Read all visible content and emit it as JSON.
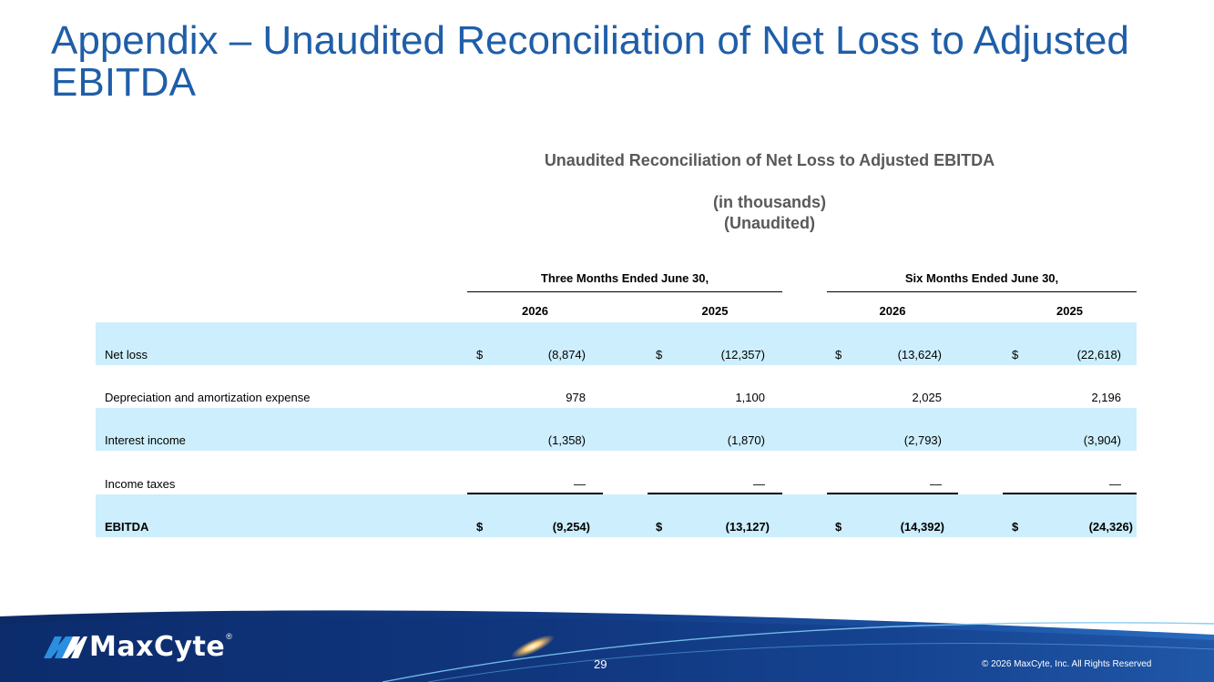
{
  "slide": {
    "title": "Appendix – Unaudited Reconciliation of Net Loss to Adjusted EBITDA",
    "page_number": "29",
    "copyright": "© 2026 MaxCyte, Inc. All Rights Reserved",
    "brand": {
      "name": "MaxCyte",
      "reg_mark": "®",
      "icon": "maxcyte-logo-icon"
    }
  },
  "table": {
    "heading": "Unaudited Reconciliation of Net Loss to Adjusted EBITDA",
    "subheading_1": "(in thousands)",
    "subheading_2": "(Unaudited)",
    "group_headers": [
      "Three Months Ended June 30,",
      "Six Months Ended June 30,"
    ],
    "years": [
      "2026",
      "2025",
      "2026",
      "2025"
    ],
    "rows": [
      {
        "label": "Net loss",
        "dollar": [
          "$",
          "$",
          "$",
          "$"
        ],
        "values": [
          "(8,874)",
          "(12,357)",
          "(13,624)",
          "(22,618)"
        ]
      },
      {
        "label": "Depreciation and amortization expense",
        "values": [
          "978",
          "1,100",
          "2,025",
          "2,196"
        ]
      },
      {
        "label": "Interest income",
        "values": [
          "(1,358)",
          "(1,870)",
          "(2,793)",
          "(3,904)"
        ]
      },
      {
        "label": "Income taxes",
        "values": [
          "—",
          "—",
          "—",
          "—"
        ]
      },
      {
        "label": "EBITDA",
        "dollar": [
          "$",
          "$",
          "$",
          "$"
        ],
        "values": [
          "(9,254)",
          "(13,127)",
          "(14,392)",
          "(24,326)"
        ]
      }
    ]
  },
  "colors": {
    "title": "#1f5ea8",
    "heading_gray": "#595959",
    "row_shade": "#cdeefc",
    "footer_navy": "#0b2a66",
    "footer_blue": "#1a4fa0"
  }
}
